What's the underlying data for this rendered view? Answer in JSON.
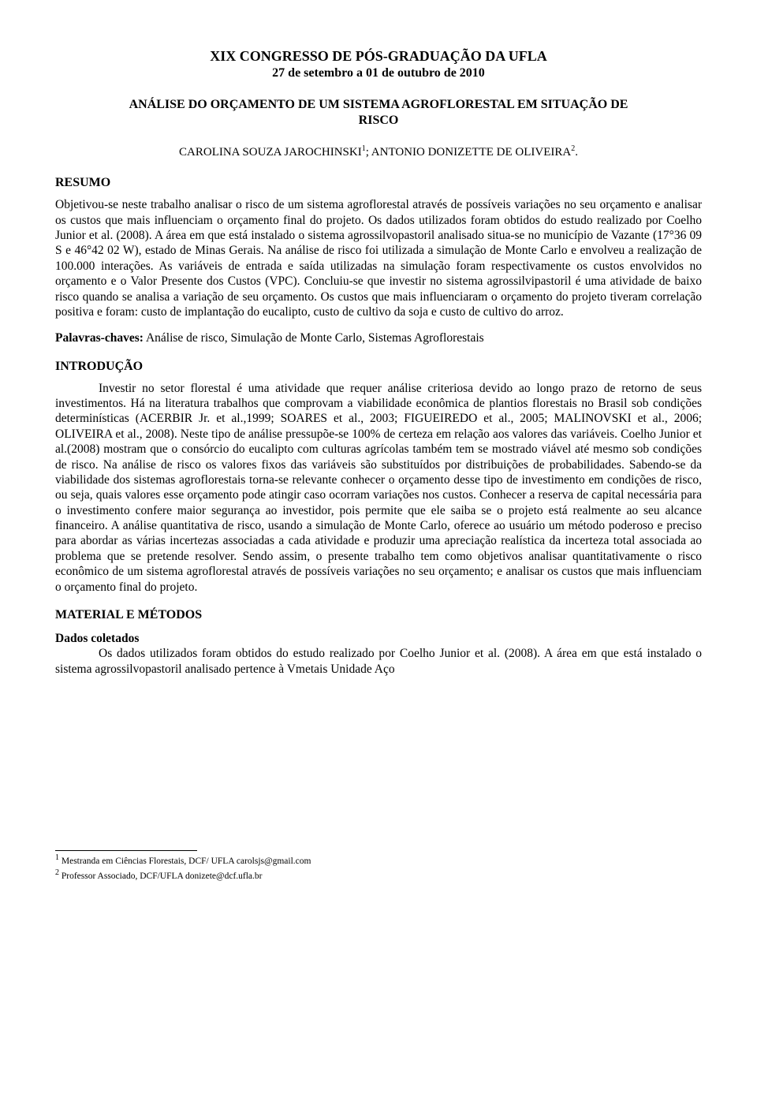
{
  "header": {
    "line1": "XIX CONGRESSO DE PÓS-GRADUAÇÃO DA UFLA",
    "line2": "27 de setembro a 01 de outubro de 2010"
  },
  "title": {
    "line1": "ANÁLISE DO ORÇAMENTO DE UM SISTEMA AGROFLORESTAL EM SITUAÇÃO DE",
    "line2": "RISCO"
  },
  "authors": {
    "text_before_sup1": "CAROLINA SOUZA JAROCHINSKI",
    "sup1": "1",
    "separator": "; ANTONIO DONIZETTE DE OLIVEIRA",
    "sup2": "2",
    "period": "."
  },
  "sections": {
    "resumo_heading": "RESUMO",
    "resumo_body": "Objetivou-se neste trabalho analisar o risco de um sistema agroflorestal através de possíveis variações no seu orçamento e analisar os custos que mais influenciam o orçamento final do projeto. Os dados utilizados foram obtidos do estudo realizado por Coelho Junior et al. (2008).  A área em que está instalado o sistema agrossilvopastoril analisado situa-se no município de Vazante (17°36 09 S e 46°42 02 W), estado de Minas Gerais. Na análise de risco foi utilizada a simulação de Monte Carlo e envolveu a realização de 100.000 interações. As variáveis de entrada e saída utilizadas na simulação foram respectivamente os custos envolvidos no orçamento e o Valor Presente dos Custos (VPC). Concluiu-se que investir no sistema agrossilvipastoril é uma atividade de baixo risco quando se analisa a variação de seu orçamento. Os custos que mais influenciaram o orçamento do projeto tiveram correlação positiva e foram: custo de implantação do eucalipto, custo de cultivo da soja e custo de cultivo do arroz.",
    "keywords_label": "Palavras-chaves:",
    "keywords_text": " Análise de risco, Simulação de Monte Carlo, Sistemas Agroflorestais",
    "intro_heading": "INTRODUÇÃO",
    "intro_body": "Investir no setor florestal é uma atividade que requer análise criteriosa devido ao longo prazo de retorno de seus investimentos. Há na literatura trabalhos que comprovam a viabilidade econômica de plantios florestais no Brasil sob condições determinísticas (ACERBIR Jr. et al.,1999; SOARES et al., 2003; FIGUEIREDO et al., 2005; MALINOVSKI et al., 2006; OLIVEIRA  et al., 2008).  Neste tipo de análise pressupõe-se 100% de certeza em relação aos valores das variáveis.  Coelho Junior et al.(2008) mostram que o consórcio do eucalipto com culturas agrícolas também tem se mostrado viável até mesmo sob condições de risco. Na análise de risco os valores fixos das variáveis são substituídos por distribuições de probabilidades. Sabendo-se da viabilidade dos sistemas agroflorestais torna-se relevante conhecer o orçamento desse tipo de investimento em condições de risco, ou seja, quais valores esse orçamento pode atingir caso ocorram variações nos custos. Conhecer a reserva de capital necessária para o investimento confere maior segurança ao investidor, pois permite que ele saiba se o projeto está realmente ao seu alcance financeiro. A análise quantitativa de risco, usando a simulação de Monte Carlo, oferece ao usuário um método poderoso e preciso para abordar as várias incertezas associadas a cada atividade e produzir uma apreciação realística da incerteza total associada ao problema que se pretende resolver. Sendo assim, o presente trabalho tem como objetivos analisar quantitativamente o risco econômico de um sistema agroflorestal através de possíveis variações no seu orçamento; e analisar os custos que mais influenciam o orçamento final do projeto.",
    "methods_heading": "MATERIAL E MÉTODOS",
    "methods_sub": "Dados coletados",
    "methods_body": "Os dados utilizados foram obtidos do estudo realizado por Coelho Junior et al. (2008).  A área em que  está  instalado  o  sistema  agrossilvopastoril analisado pertence à Vmetais  Unidade Aço"
  },
  "footnotes": {
    "f1_sup": "1",
    "f1_text": " Mestranda em Ciências Florestais, DCF/ UFLA  carolsjs@gmail.com",
    "f2_sup": "2",
    "f2_text": " Professor Associado, DCF/UFLA  donizete@dcf.ufla.br"
  }
}
